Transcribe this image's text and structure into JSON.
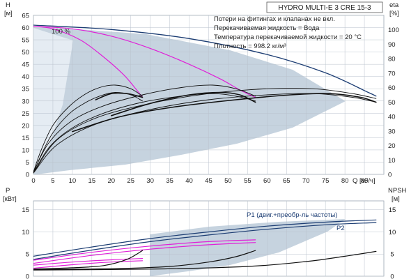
{
  "chart_data": {
    "type": "line",
    "title": "HYDRO MULTI-E 3 CRE 15-3",
    "notes": [
      "Потери на фитингах и клапанах не вкл.",
      "Перекачиваемая жидкость = Вода",
      "Температура перекачиваемой жидкости = 20 °C",
      "Плотность = 998.2 кг/м³"
    ],
    "speed_label": "100 %",
    "top": {
      "ylabel_left_1": "H",
      "ylabel_left_2": "[м]",
      "ylabel_right_1": "eta",
      "ylabel_right_2": "[%]",
      "xlabel": "Q [м³/ч]",
      "xlim": [
        0,
        90
      ],
      "ylim": [
        0,
        65
      ],
      "eta_lim": [
        0,
        110
      ],
      "x_ticks": [
        0,
        5,
        10,
        15,
        20,
        25,
        30,
        35,
        40,
        45,
        50,
        55,
        60,
        65,
        70,
        75,
        80,
        85
      ],
      "y_ticks": [
        0,
        5,
        10,
        15,
        20,
        25,
        30,
        35,
        40,
        45,
        50,
        55,
        60,
        65
      ],
      "eta_ticks": [
        0,
        10,
        20,
        30,
        40,
        50,
        60,
        70,
        80,
        90,
        100
      ],
      "series": [
        {
          "color": "#1c3d73",
          "width": 1.3,
          "points": [
            [
              0,
              61
            ],
            [
              20,
              59.2
            ],
            [
              40,
              55.5
            ],
            [
              60,
              49
            ],
            [
              75,
              41.5
            ],
            [
              86,
              33.5
            ],
            [
              88,
              32
            ]
          ]
        },
        {
          "color": "#e020d8",
          "width": 1.2,
          "points": [
            [
              0,
              60.5
            ],
            [
              5,
              59.5
            ],
            [
              12,
              55
            ],
            [
              18,
              48
            ],
            [
              23,
              41
            ],
            [
              26,
              35.5
            ],
            [
              28,
              31.5
            ]
          ]
        },
        {
          "color": "#e020d8",
          "width": 1.2,
          "points": [
            [
              0,
              60.5
            ],
            [
              10,
              59.5
            ],
            [
              20,
              56.5
            ],
            [
              30,
              51.5
            ],
            [
              40,
              45
            ],
            [
              48,
              39
            ],
            [
              53,
              34.5
            ],
            [
              57,
              31.5
            ]
          ]
        },
        {
          "color": "#111111",
          "width": 0.9,
          "points": [
            [
              0,
              1
            ],
            [
              2,
              10
            ],
            [
              5,
              20
            ],
            [
              9,
              27.5
            ],
            [
              13,
              32.5
            ],
            [
              17,
              35.5
            ],
            [
              21,
              36.5
            ],
            [
              25,
              35
            ],
            [
              28,
              32
            ]
          ]
        },
        {
          "color": "#111111",
          "width": 0.9,
          "points": [
            [
              0,
              0.5
            ],
            [
              2,
              8
            ],
            [
              5,
              17
            ],
            [
              9,
              24.5
            ],
            [
              13,
              29
            ],
            [
              17,
              32
            ],
            [
              21,
              33.5
            ],
            [
              25,
              32.5
            ],
            [
              28,
              30
            ]
          ]
        },
        {
          "color": "#111111",
          "width": 1.6,
          "points": [
            [
              16,
              30.5
            ],
            [
              20,
              33
            ],
            [
              24,
              33
            ],
            [
              28,
              31.5
            ]
          ]
        },
        {
          "color": "#111111",
          "width": 0.9,
          "points": [
            [
              0,
              1
            ],
            [
              4,
              13
            ],
            [
              10,
              22
            ],
            [
              18,
              28
            ],
            [
              28,
              32.5
            ],
            [
              38,
              35.5
            ],
            [
              46,
              36.5
            ],
            [
              52,
              35
            ],
            [
              57,
              32
            ]
          ]
        },
        {
          "color": "#111111",
          "width": 0.9,
          "points": [
            [
              0,
              0.5
            ],
            [
              4,
              11
            ],
            [
              10,
              19
            ],
            [
              18,
              25
            ],
            [
              28,
              29.5
            ],
            [
              38,
              32
            ],
            [
              46,
              33
            ],
            [
              52,
              32
            ],
            [
              57,
              30
            ]
          ]
        },
        {
          "color": "#111111",
          "width": 1.6,
          "points": [
            [
              20,
              24
            ],
            [
              30,
              29
            ],
            [
              40,
              32.5
            ],
            [
              48,
              33.5
            ],
            [
              53,
              32.5
            ],
            [
              57,
              29.5
            ]
          ]
        },
        {
          "color": "#111111",
          "width": 0.9,
          "points": [
            [
              0,
              0.5
            ],
            [
              6,
              14
            ],
            [
              16,
              23
            ],
            [
              30,
              29
            ],
            [
              45,
              33
            ],
            [
              60,
              35
            ],
            [
              72,
              35
            ],
            [
              82,
              33
            ],
            [
              88,
              31
            ]
          ]
        },
        {
          "color": "#111111",
          "width": 0.9,
          "points": [
            [
              0,
              0.5
            ],
            [
              6,
              12
            ],
            [
              16,
              20.5
            ],
            [
              30,
              26.5
            ],
            [
              45,
              30.5
            ],
            [
              60,
              32.5
            ],
            [
              72,
              33
            ],
            [
              82,
              31.5
            ],
            [
              88,
              29.5
            ]
          ]
        },
        {
          "color": "#111111",
          "width": 1.6,
          "points": [
            [
              10,
              17.5
            ],
            [
              22,
              23.5
            ],
            [
              36,
              27.5
            ],
            [
              52,
              30.5
            ],
            [
              66,
              32.5
            ],
            [
              76,
              33
            ],
            [
              84,
              31.5
            ],
            [
              88,
              29.5
            ]
          ]
        }
      ]
    },
    "bottom": {
      "ylabel_left_1": "P",
      "ylabel_left_2": "[кВт]",
      "ylabel_right_1": "NPSH",
      "ylabel_right_2": "[м]",
      "xlim": [
        0,
        90
      ],
      "ylim": [
        0,
        17
      ],
      "y_ticks": [
        0,
        5,
        10,
        15
      ],
      "npsh_ticks": [
        0,
        5,
        10,
        15
      ],
      "p1_label": "P1 (двиг.+преобр-ль частоты)",
      "p2_label": "P2",
      "series": [
        {
          "color": "#1c3d73",
          "width": 1.2,
          "points": [
            [
              0,
              4.5
            ],
            [
              15,
              6.6
            ],
            [
              30,
              8.5
            ],
            [
              45,
              10
            ],
            [
              60,
              11.3
            ],
            [
              75,
              12.2
            ],
            [
              88,
              12.7
            ]
          ]
        },
        {
          "color": "#1c3d73",
          "width": 1.2,
          "points": [
            [
              0,
              3.8
            ],
            [
              15,
              5.9
            ],
            [
              30,
              7.8
            ],
            [
              45,
              9.3
            ],
            [
              60,
              10.6
            ],
            [
              75,
              11.6
            ],
            [
              88,
              12.1
            ]
          ]
        },
        {
          "color": "#e020d8",
          "width": 1.2,
          "points": [
            [
              0,
              2.5
            ],
            [
              10,
              3.2
            ],
            [
              20,
              3.7
            ],
            [
              28,
              4
            ]
          ]
        },
        {
          "color": "#e020d8",
          "width": 1.2,
          "points": [
            [
              0,
              1.8
            ],
            [
              10,
              2.6
            ],
            [
              20,
              3.2
            ],
            [
              28,
              3.5
            ]
          ]
        },
        {
          "color": "#e020d8",
          "width": 1.2,
          "points": [
            [
              0,
              3.6
            ],
            [
              15,
              5.4
            ],
            [
              30,
              6.8
            ],
            [
              45,
              7.8
            ],
            [
              57,
              8.2
            ]
          ]
        },
        {
          "color": "#e020d8",
          "width": 1.2,
          "points": [
            [
              0,
              2.9
            ],
            [
              15,
              4.7
            ],
            [
              30,
              6.1
            ],
            [
              45,
              7.1
            ],
            [
              57,
              7.6
            ]
          ]
        },
        {
          "color": "#111111",
          "width": 1.2,
          "points": [
            [
              0,
              1.6
            ],
            [
              10,
              1.9
            ],
            [
              18,
              2.4
            ],
            [
              24,
              3.8
            ],
            [
              28,
              5.8
            ]
          ]
        },
        {
          "color": "#111111",
          "width": 1.2,
          "points": [
            [
              0,
              1.5
            ],
            [
              20,
              1.7
            ],
            [
              35,
              2.2
            ],
            [
              45,
              3.2
            ],
            [
              52,
              4.4
            ],
            [
              57,
              5.8
            ]
          ]
        },
        {
          "color": "#111111",
          "width": 1.2,
          "points": [
            [
              0,
              1.4
            ],
            [
              30,
              1.6
            ],
            [
              55,
              2.2
            ],
            [
              70,
              3.3
            ],
            [
              80,
              4.5
            ],
            [
              88,
              5.6
            ]
          ]
        }
      ]
    }
  }
}
